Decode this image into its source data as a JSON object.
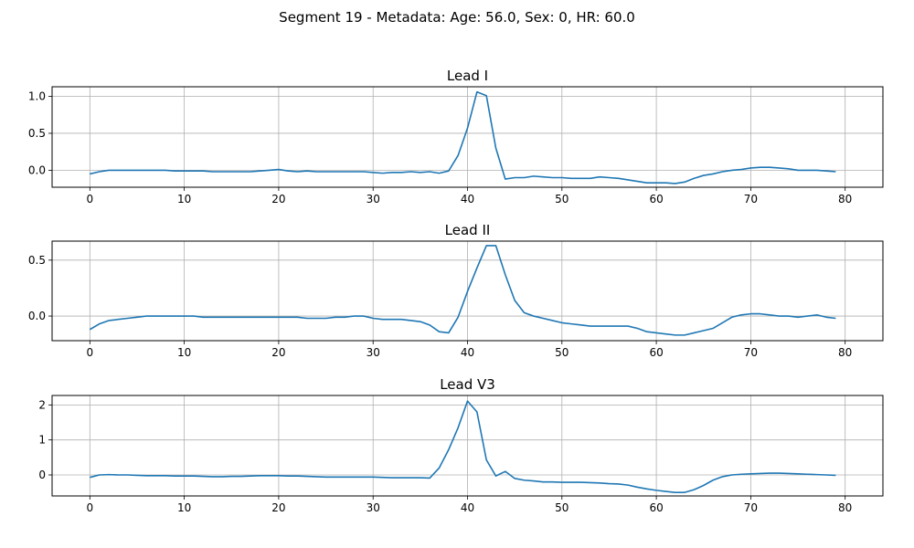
{
  "figure": {
    "suptitle": "Segment 19 - Metadata: Age: 56.0, Sex: 0, HR: 60.0",
    "line_color": "#1f77b4",
    "grid_color": "#b0b0b0"
  },
  "chart_data": [
    {
      "type": "line",
      "title": "Lead I",
      "xlabel": "",
      "ylabel": "",
      "grid": true,
      "xlim": [
        -4,
        84
      ],
      "ylim": [
        -0.23,
        1.13
      ],
      "x_ticks": [
        0,
        10,
        20,
        30,
        40,
        50,
        60,
        70,
        80
      ],
      "y_ticks": [
        0.0,
        0.5,
        1.0
      ],
      "y_tick_labels": [
        "0.0",
        "0.5",
        "1.0"
      ],
      "y": [
        -0.05,
        -0.02,
        0.0,
        0.0,
        0.0,
        0.0,
        0.0,
        0.0,
        0.0,
        -0.01,
        -0.01,
        -0.01,
        -0.01,
        -0.02,
        -0.02,
        -0.02,
        -0.02,
        -0.02,
        -0.01,
        0.0,
        0.01,
        -0.01,
        -0.02,
        -0.01,
        -0.02,
        -0.02,
        -0.02,
        -0.02,
        -0.02,
        -0.02,
        -0.03,
        -0.04,
        -0.03,
        -0.03,
        -0.02,
        -0.03,
        -0.02,
        -0.04,
        -0.01,
        0.2,
        0.57,
        1.06,
        1.01,
        0.3,
        -0.12,
        -0.1,
        -0.1,
        -0.08,
        -0.09,
        -0.1,
        -0.1,
        -0.11,
        -0.11,
        -0.11,
        -0.09,
        -0.1,
        -0.11,
        -0.13,
        -0.15,
        -0.17,
        -0.17,
        -0.17,
        -0.18,
        -0.16,
        -0.11,
        -0.07,
        -0.05,
        -0.02,
        0.0,
        0.01,
        0.03,
        0.04,
        0.04,
        0.03,
        0.02,
        0.0,
        0.0,
        0.0,
        -0.01,
        -0.02
      ]
    },
    {
      "type": "line",
      "title": "Lead II",
      "xlabel": "",
      "ylabel": "",
      "grid": true,
      "xlim": [
        -4,
        84
      ],
      "ylim": [
        -0.22,
        0.67
      ],
      "x_ticks": [
        0,
        10,
        20,
        30,
        40,
        50,
        60,
        70,
        80
      ],
      "y_ticks": [
        0.0,
        0.5
      ],
      "y_tick_labels": [
        "0.0",
        "0.5"
      ],
      "y": [
        -0.12,
        -0.07,
        -0.04,
        -0.03,
        -0.02,
        -0.01,
        0.0,
        0.0,
        0.0,
        0.0,
        0.0,
        0.0,
        -0.01,
        -0.01,
        -0.01,
        -0.01,
        -0.01,
        -0.01,
        -0.01,
        -0.01,
        -0.01,
        -0.01,
        -0.01,
        -0.02,
        -0.02,
        -0.02,
        -0.01,
        -0.01,
        0.0,
        0.0,
        -0.02,
        -0.03,
        -0.03,
        -0.03,
        -0.04,
        -0.05,
        -0.08,
        -0.14,
        -0.15,
        -0.01,
        0.22,
        0.43,
        0.63,
        0.63,
        0.37,
        0.14,
        0.03,
        0.0,
        -0.02,
        -0.04,
        -0.06,
        -0.07,
        -0.08,
        -0.09,
        -0.09,
        -0.09,
        -0.09,
        -0.09,
        -0.11,
        -0.14,
        -0.15,
        -0.16,
        -0.17,
        -0.17,
        -0.15,
        -0.13,
        -0.11,
        -0.06,
        -0.01,
        0.01,
        0.02,
        0.02,
        0.01,
        0.0,
        0.0,
        -0.01,
        0.0,
        0.01,
        -0.01,
        -0.02
      ]
    },
    {
      "type": "line",
      "title": "Lead V3",
      "xlabel": "",
      "ylabel": "",
      "grid": true,
      "xlim": [
        -4,
        84
      ],
      "ylim": [
        -0.6,
        2.27
      ],
      "x_ticks": [
        0,
        10,
        20,
        30,
        40,
        50,
        60,
        70,
        80
      ],
      "y_ticks": [
        0,
        1,
        2
      ],
      "y_tick_labels": [
        "0",
        "1",
        "2"
      ],
      "y": [
        -0.07,
        0.0,
        0.01,
        0.0,
        0.0,
        -0.01,
        -0.02,
        -0.02,
        -0.02,
        -0.03,
        -0.03,
        -0.03,
        -0.04,
        -0.05,
        -0.05,
        -0.04,
        -0.04,
        -0.03,
        -0.02,
        -0.02,
        -0.02,
        -0.03,
        -0.03,
        -0.04,
        -0.05,
        -0.06,
        -0.06,
        -0.06,
        -0.06,
        -0.06,
        -0.06,
        -0.07,
        -0.08,
        -0.08,
        -0.08,
        -0.08,
        -0.09,
        0.2,
        0.72,
        1.35,
        2.11,
        1.8,
        0.43,
        -0.03,
        0.1,
        -0.1,
        -0.15,
        -0.17,
        -0.2,
        -0.2,
        -0.21,
        -0.21,
        -0.21,
        -0.22,
        -0.23,
        -0.25,
        -0.26,
        -0.29,
        -0.35,
        -0.4,
        -0.44,
        -0.47,
        -0.5,
        -0.5,
        -0.42,
        -0.3,
        -0.15,
        -0.05,
        0.0,
        0.02,
        0.03,
        0.04,
        0.05,
        0.05,
        0.04,
        0.03,
        0.02,
        0.01,
        0.0,
        -0.01
      ]
    }
  ]
}
